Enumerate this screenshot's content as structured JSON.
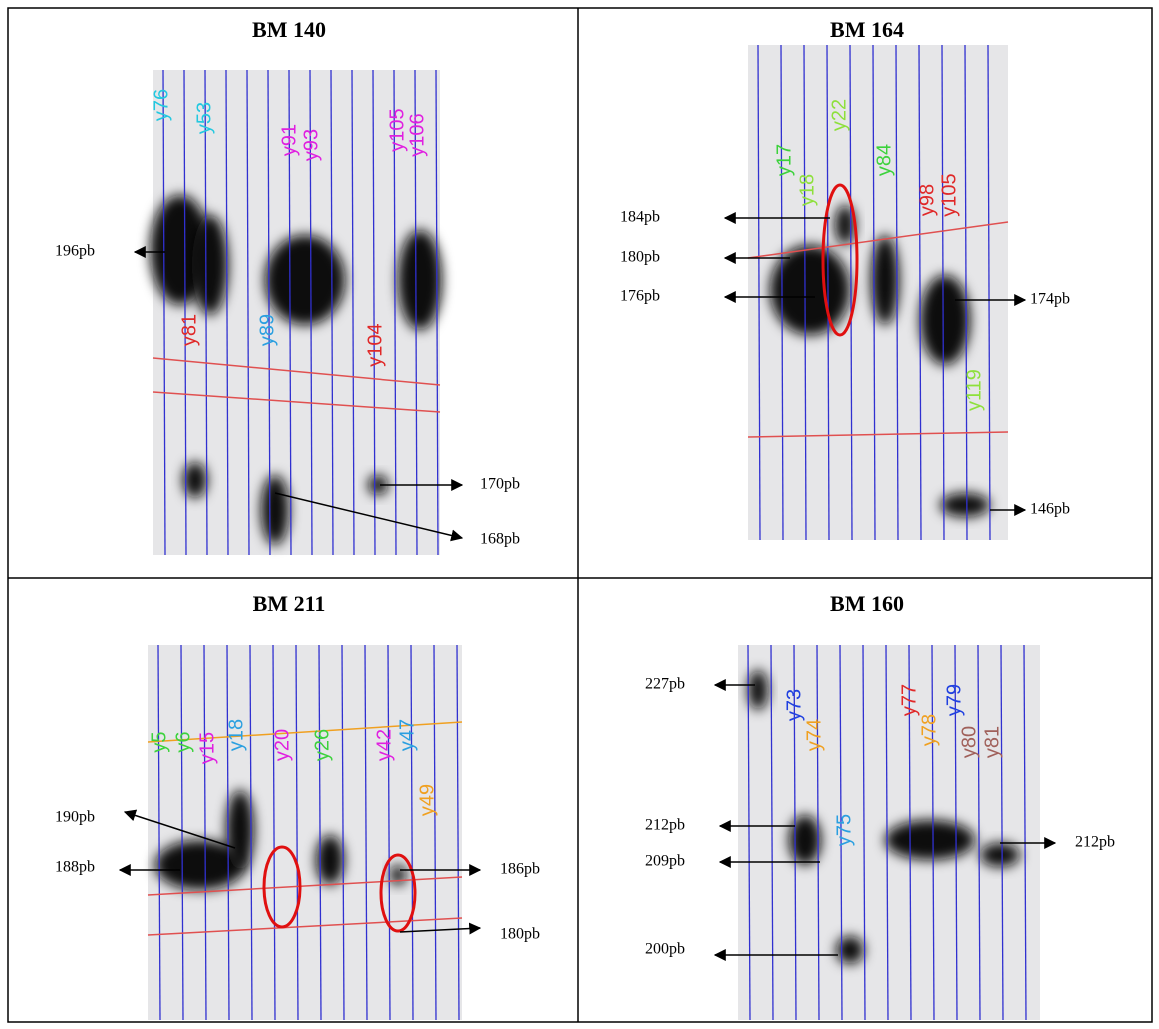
{
  "panels": [
    {
      "title": "BM 140",
      "lanes": [
        "y76",
        "y53",
        "y91",
        "y93",
        "y105",
        "y106",
        "y81",
        "y89",
        "y104"
      ],
      "sizes": [
        "196pb",
        "170pb",
        "168pb"
      ]
    },
    {
      "title": "BM 164",
      "lanes": [
        "y17",
        "y18",
        "y22",
        "y84",
        "y98",
        "y105",
        "y119"
      ],
      "sizes": [
        "184pb",
        "180pb",
        "176pb",
        "174pb",
        "146pb"
      ]
    },
    {
      "title": "BM 211",
      "lanes": [
        "y5",
        "y6",
        "y15",
        "y18",
        "y20",
        "y26",
        "y42",
        "y47",
        "y49"
      ],
      "sizes": [
        "190pb",
        "188pb",
        "186pb",
        "180pb"
      ]
    },
    {
      "title": "BM 160",
      "lanes": [
        "y73",
        "y74",
        "y75",
        "y77",
        "y78",
        "y79",
        "y80",
        "y81"
      ],
      "sizes": [
        "227pb",
        "212pb",
        "209pb",
        "200pb",
        "212pb"
      ]
    }
  ]
}
